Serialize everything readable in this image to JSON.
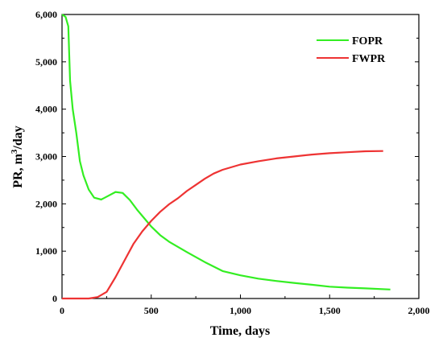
{
  "chart_data": {
    "type": "line",
    "xlabel": "Time, days",
    "ylabel_main": "PR, m",
    "ylabel_sup": "3",
    "ylabel_tail": "/day",
    "xlim": [
      0,
      2000
    ],
    "ylim": [
      0,
      6000
    ],
    "x_ticks": [
      0,
      500,
      1000,
      1500,
      2000
    ],
    "x_tick_labels": [
      "0",
      "500",
      "1,000",
      "1,500",
      "2,000"
    ],
    "y_ticks": [
      0,
      1000,
      2000,
      3000,
      4000,
      5000,
      6000
    ],
    "y_tick_labels": [
      "0",
      "1,000",
      "2,000",
      "3,000",
      "4,000",
      "5,000",
      "6,000"
    ],
    "grid": false,
    "legend_position": "top-right",
    "series": [
      {
        "name": "FOPR",
        "color": "#33ee22",
        "points": [
          [
            0,
            6000
          ],
          [
            20,
            5950
          ],
          [
            35,
            5750
          ],
          [
            45,
            4600
          ],
          [
            60,
            4000
          ],
          [
            80,
            3500
          ],
          [
            100,
            2900
          ],
          [
            120,
            2600
          ],
          [
            150,
            2300
          ],
          [
            180,
            2130
          ],
          [
            220,
            2090
          ],
          [
            260,
            2170
          ],
          [
            300,
            2250
          ],
          [
            340,
            2230
          ],
          [
            380,
            2080
          ],
          [
            420,
            1880
          ],
          [
            460,
            1700
          ],
          [
            500,
            1520
          ],
          [
            550,
            1340
          ],
          [
            600,
            1200
          ],
          [
            700,
            980
          ],
          [
            800,
            770
          ],
          [
            900,
            580
          ],
          [
            1000,
            490
          ],
          [
            1100,
            420
          ],
          [
            1200,
            370
          ],
          [
            1300,
            330
          ],
          [
            1400,
            290
          ],
          [
            1500,
            250
          ],
          [
            1600,
            230
          ],
          [
            1700,
            215
          ],
          [
            1840,
            190
          ]
        ]
      },
      {
        "name": "FWPR",
        "color": "#ee3333",
        "points": [
          [
            0,
            0
          ],
          [
            150,
            0
          ],
          [
            200,
            30
          ],
          [
            250,
            140
          ],
          [
            300,
            450
          ],
          [
            350,
            800
          ],
          [
            400,
            1150
          ],
          [
            450,
            1420
          ],
          [
            500,
            1640
          ],
          [
            550,
            1830
          ],
          [
            600,
            1990
          ],
          [
            650,
            2120
          ],
          [
            700,
            2270
          ],
          [
            750,
            2400
          ],
          [
            800,
            2530
          ],
          [
            850,
            2640
          ],
          [
            900,
            2720
          ],
          [
            1000,
            2830
          ],
          [
            1100,
            2900
          ],
          [
            1200,
            2960
          ],
          [
            1300,
            3000
          ],
          [
            1400,
            3040
          ],
          [
            1500,
            3070
          ],
          [
            1600,
            3090
          ],
          [
            1700,
            3110
          ],
          [
            1800,
            3115
          ]
        ]
      }
    ]
  }
}
